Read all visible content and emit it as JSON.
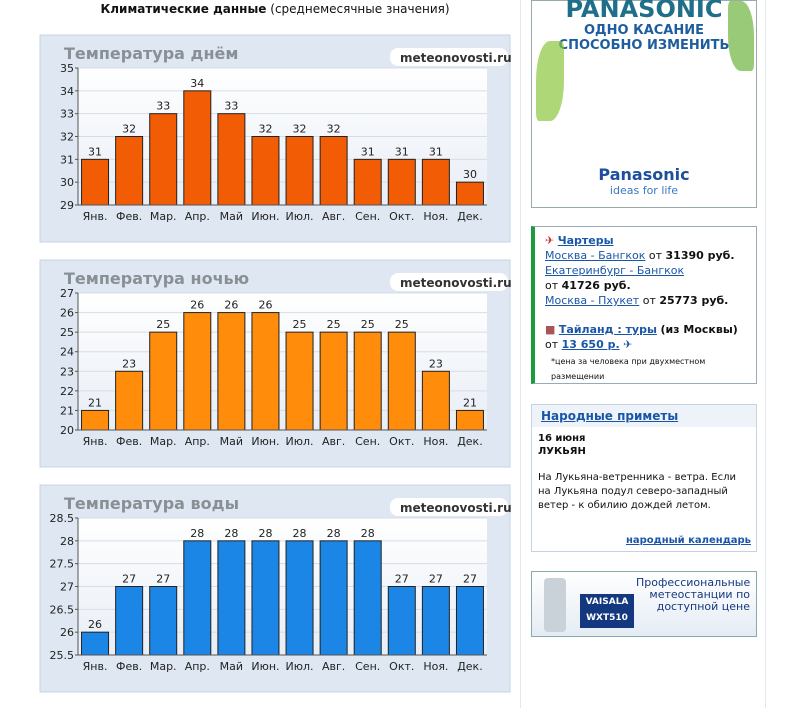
{
  "header": {
    "title_bold": "Климатические данные",
    "title_rest": "(среднемесячные значения)"
  },
  "chart_data": [
    {
      "type": "bar",
      "title": "Температура днём",
      "watermark": "meteonovosti.ru",
      "categories": [
        "Янв.",
        "Фев.",
        "Мар.",
        "Апр.",
        "Май",
        "Июн.",
        "Июл.",
        "Авг.",
        "Сен.",
        "Окт.",
        "Ноя.",
        "Дек."
      ],
      "values": [
        31,
        32,
        33,
        34,
        33,
        32,
        32,
        32,
        31,
        31,
        31,
        30
      ],
      "color": "#f25c05",
      "ylim": [
        29,
        35
      ],
      "yticks": [
        29,
        30,
        31,
        32,
        33,
        34,
        35
      ],
      "grid": true
    },
    {
      "type": "bar",
      "title": "Температура ночью",
      "watermark": "meteonovosti.ru",
      "categories": [
        "Янв.",
        "Фев.",
        "Мар.",
        "Апр.",
        "Май",
        "Июн.",
        "Июл.",
        "Авг.",
        "Сен.",
        "Окт.",
        "Ноя.",
        "Дек."
      ],
      "values": [
        21,
        23,
        25,
        26,
        26,
        26,
        25,
        25,
        25,
        25,
        23,
        21
      ],
      "color": "#ff8c0a",
      "ylim": [
        20,
        27
      ],
      "yticks": [
        20,
        21,
        22,
        23,
        24,
        25,
        26,
        27
      ],
      "grid": true
    },
    {
      "type": "bar",
      "title": "Температура воды",
      "watermark": "meteonovosti.ru",
      "categories": [
        "Янв.",
        "Фев.",
        "Мар.",
        "Апр.",
        "Май",
        "Июн.",
        "Июл.",
        "Авг.",
        "Сен.",
        "Окт.",
        "Ноя.",
        "Дек."
      ],
      "values": [
        26,
        27,
        27,
        28,
        28,
        28,
        28,
        28,
        28,
        27,
        27,
        27
      ],
      "color": "#1c86e6",
      "ylim": [
        25.5,
        28.5
      ],
      "yticks": [
        25.5,
        26,
        26.5,
        27,
        27.5,
        28,
        28.5
      ],
      "grid": true
    }
  ],
  "sidebar": {
    "ad1": {
      "brand": "PANASONIC",
      "line1": "ОДНО КАСАНИЕ",
      "line2": "СПОСОБНО ИЗМЕНИТЬ",
      "logo": "Panasonic",
      "slogan": "ideas for life"
    },
    "charters": {
      "title": "Чартеры",
      "routes": [
        {
          "route": "Москва - Бангкок",
          "from": "от",
          "price": "31390 руб."
        },
        {
          "route": "Екатеринбург - Бангкок",
          "from": "от",
          "price": "41726 руб."
        },
        {
          "route": "Москва - Пхукет",
          "from": "от",
          "price": "25773 руб."
        }
      ],
      "tours": "Тайланд : туры",
      "tours_note": "(из Москвы)",
      "tours_from": "от",
      "tours_price": "13 650 р.",
      "footnote": "*цена за человека при двухместном размещении"
    },
    "folk": {
      "title": "Народные приметы",
      "date": "16 июня",
      "name": "ЛУКЬЯН",
      "text": "На Лукьяна-ветренника - ветра. Если на Лукьяна подул северо-западный ветер - к обилию дождей летом.",
      "link": "народный календарь"
    },
    "ad2": {
      "text": "Профессиональные метеостанции по доступной цене",
      "brand": "VAISALA",
      "model": "WXT510"
    }
  }
}
